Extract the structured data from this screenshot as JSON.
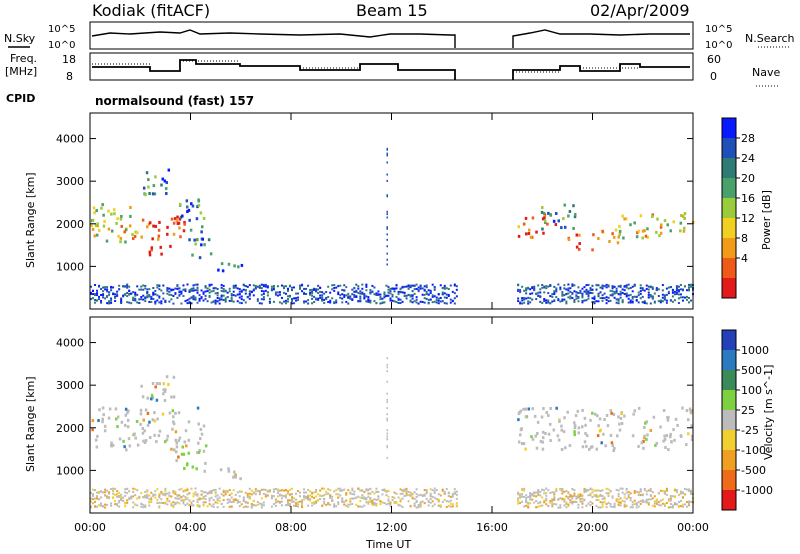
{
  "header": {
    "station": "Kodiak (fitACF)",
    "beam": "Beam 15",
    "date": "02/Apr/2009"
  },
  "side_labels": {
    "nsky": "N.Sky",
    "nsearch": "N.Search",
    "freq_line1": "Freq.",
    "freq_line2": "[MHz]",
    "nave": "Nave",
    "cpid": "CPID",
    "cpid_value": "normalsound (fast) 157"
  },
  "noise_axis": {
    "ticks_left": [
      "10^5",
      "10^0"
    ],
    "ticks_right": [
      "10^5",
      "10^0"
    ]
  },
  "freq_axis": {
    "ticks_left": [
      "18",
      "8"
    ],
    "ticks_right": [
      "60",
      "0"
    ]
  },
  "chart_data": [
    {
      "type": "heatmap",
      "panel": "power",
      "ylabel": "Slant Range [km]",
      "ylim": [
        0,
        4600
      ],
      "yticks": [
        "4000",
        "3000",
        "2000",
        "1000"
      ],
      "xlim": [
        "00:00",
        "24:00"
      ],
      "colorbar": {
        "label": "Power [dB]",
        "ticks": [
          "28",
          "24",
          "20",
          "16",
          "12",
          "8",
          "4"
        ],
        "colors": [
          "#0a1aff",
          "#1f4fb8",
          "#2e7a74",
          "#4aa06a",
          "#9acb3a",
          "#f0d020",
          "#f29b18",
          "#ef5a1a",
          "#e31a1a"
        ]
      },
      "regions": [
        {
          "t0": 0.0,
          "t1": 1.6,
          "r0": 1600,
          "r1": 2500,
          "level": 0.55
        },
        {
          "t0": 1.0,
          "t1": 2.3,
          "r0": 1600,
          "r1": 2200,
          "level": 0.65
        },
        {
          "t0": 2.3,
          "t1": 3.8,
          "r0": 1300,
          "r1": 2200,
          "level": 0.95
        },
        {
          "t0": 2.0,
          "t1": 3.3,
          "r0": 2600,
          "r1": 3300,
          "level": 0.25
        },
        {
          "t0": 3.5,
          "t1": 4.5,
          "r0": 1600,
          "r1": 2600,
          "level": 0.3
        },
        {
          "t0": 4.0,
          "t1": 4.8,
          "r0": 1200,
          "r1": 1700,
          "level": 0.25
        },
        {
          "t0": 5.0,
          "t1": 6.2,
          "r0": 800,
          "r1": 1100,
          "level": 0.2
        },
        {
          "t0": 17.0,
          "t1": 18.5,
          "r0": 1700,
          "r1": 2300,
          "level": 0.85
        },
        {
          "t0": 17.8,
          "t1": 19.3,
          "r0": 1900,
          "r1": 2500,
          "level": 0.3
        },
        {
          "t0": 19.0,
          "t1": 20.0,
          "r0": 1400,
          "r1": 1800,
          "level": 0.9
        },
        {
          "t0": 20.0,
          "t1": 21.0,
          "r0": 1500,
          "r1": 1900,
          "level": 0.8
        },
        {
          "t0": 21.0,
          "t1": 24.0,
          "r0": 1700,
          "r1": 2300,
          "level": 0.6
        }
      ]
    },
    {
      "type": "heatmap",
      "panel": "velocity",
      "ylabel": "Slant Range [km]",
      "ylim": [
        0,
        4600
      ],
      "yticks": [
        "4000",
        "3000",
        "2000",
        "1000"
      ],
      "xlim": [
        "00:00",
        "24:00"
      ],
      "colorbar": {
        "label": "Velocity [m s^-1]",
        "ticks": [
          "1000",
          "500",
          "100",
          "25",
          "-25",
          "-100",
          "-500",
          "-1000"
        ],
        "colors": [
          "#2340b8",
          "#2a7ac0",
          "#3a8a5a",
          "#7fd040",
          "#bcbcbc",
          "#f0d030",
          "#f0a020",
          "#ef6a1a",
          "#e31a1a"
        ]
      },
      "regions": [
        {
          "t0": 0.0,
          "t1": 4.5,
          "r0": 1500,
          "r1": 2500,
          "level": 0.45
        },
        {
          "t0": 2.0,
          "t1": 3.3,
          "r0": 2600,
          "r1": 3300,
          "level": 0.45
        },
        {
          "t0": 3.3,
          "t1": 4.6,
          "r0": 1000,
          "r1": 1700,
          "level": 0.35
        },
        {
          "t0": 5.0,
          "t1": 6.2,
          "r0": 800,
          "r1": 1100,
          "level": 0.45
        },
        {
          "t0": 17.0,
          "t1": 24.0,
          "r0": 1500,
          "r1": 2500,
          "level": 0.45
        }
      ]
    }
  ],
  "time_axis": {
    "label": "Time UT",
    "ticks": [
      "00:00",
      "04:00",
      "08:00",
      "12:00",
      "16:00",
      "20:00",
      "00:00"
    ]
  }
}
